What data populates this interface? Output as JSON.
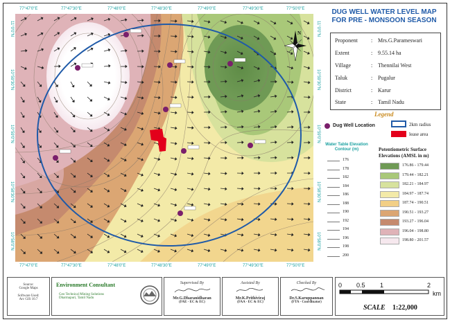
{
  "title": {
    "line1": "DUG WELL WATER LEVEL MAP",
    "line2": "FOR PRE - MONSOON SEASON"
  },
  "info": [
    {
      "key": "Proponent",
      "value": "Mrs.G.Parameswari"
    },
    {
      "key": "Extent",
      "value": "9.55.14 ha"
    },
    {
      "key": "Village",
      "value": "Thennilai West"
    },
    {
      "key": "Taluk",
      "value": "Pugalur"
    },
    {
      "key": "District",
      "value": "Karur"
    },
    {
      "key": "State",
      "value": "Tamil Nadu"
    }
  ],
  "info_colon": ":",
  "legend": {
    "title": "Legend",
    "dug_well": "Dug Well Location",
    "radius": "2km radius",
    "lease": "lease area",
    "dug_well_color": "#7a1f6b",
    "radius_color": "#1f5aa8",
    "lease_color": "#e3001b"
  },
  "longitudes": [
    "77°47'0\"E",
    "77°47'30\"E",
    "77°48'0\"E",
    "77°48'30\"E",
    "77°49'0\"E",
    "77°49'30\"E",
    "77°50'0\"E"
  ],
  "latitudes": [
    "11°0'0\"N",
    "10°59'30\"N",
    "10°59'0\"N",
    "10°58'30\"N",
    "10°58'0\"N"
  ],
  "water_table": {
    "title": "Water Table Elevation Contour (m)",
    "values": [
      "176",
      "178",
      "182",
      "184",
      "186",
      "188",
      "190",
      "192",
      "194",
      "196",
      "198",
      "200"
    ]
  },
  "potentiometric": {
    "title": "Potentiometric Surface Elevations (AMSL in m)",
    "classes": [
      {
        "range": "176.86 - 179.44",
        "color": "#6f9a55"
      },
      {
        "range": "179.44 - 182.21",
        "color": "#a9c879"
      },
      {
        "range": "182.21 - 184.97",
        "color": "#d7e29d"
      },
      {
        "range": "184.97 - 187.74",
        "color": "#f3eaa8"
      },
      {
        "range": "187.74 - 190.51",
        "color": "#f2cf86"
      },
      {
        "range": "190.51 - 193.27",
        "color": "#dba673"
      },
      {
        "range": "193.27 - 196.04",
        "color": "#c58a6e"
      },
      {
        "range": "196.04 - 198.80",
        "color": "#dfb3b8"
      },
      {
        "range": "198.80 - 201.57",
        "color": "#f6e8ee"
      }
    ]
  },
  "footer": {
    "prepared_small": "Source:\nGoogle Maps",
    "software": "Software Used:\nArc GIS 10.7",
    "consultant": "Environment Consultant",
    "consultant_sub": "Geo Technical Mining Solutions\nDharmapuri, Tamil Nadu",
    "supervised_label": "Supervised By",
    "supervised_name": "Mr.G.Dharanidharan",
    "supervised_role": "(FAE - EC & EC)",
    "assisted_label": "Assisted By",
    "assisted_name": "Mr.K.Prithiviraj",
    "assisted_role": "(FAA - EC & EC)",
    "checked_label": "Checked By",
    "checked_name": "Dr.S.Karuppannan",
    "checked_role": "(FTA - Coordinator)"
  },
  "scale": {
    "ticks": [
      "0",
      "0.5",
      "1",
      "2"
    ],
    "unit": "km",
    "label": "SCALE",
    "ratio": "1:22,000"
  },
  "north_arrow": "N"
}
